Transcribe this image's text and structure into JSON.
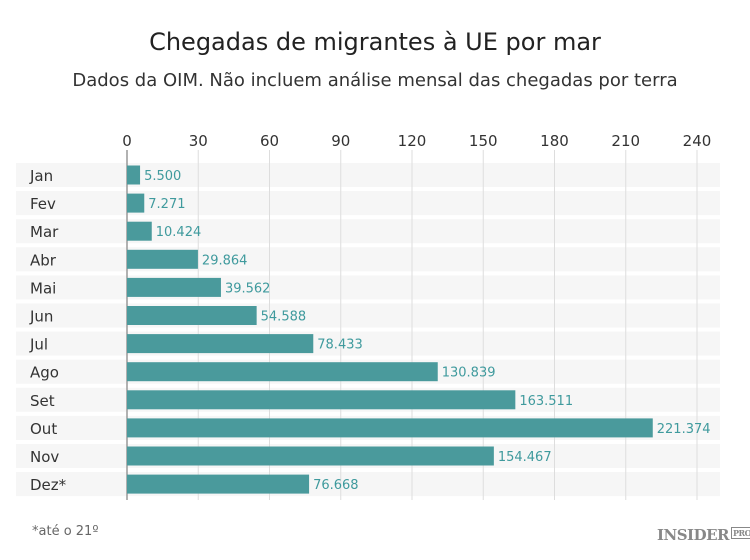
{
  "chart_data": {
    "type": "bar",
    "orientation": "horizontal",
    "title": "Chegadas de migrantes à UE por mar",
    "subtitle": "Dados da OIM. Não incluem análise mensal das chegadas por terra",
    "categories": [
      "Jan",
      "Fev",
      "Mar",
      "Abr",
      "Mai",
      "Jun",
      "Jul",
      "Ago",
      "Set",
      "Out",
      "Nov",
      "Dez*"
    ],
    "values": [
      5.5,
      7.271,
      10.424,
      29.864,
      39.562,
      54.588,
      78.433,
      130.839,
      163.511,
      221.374,
      154.467,
      76.668
    ],
    "value_labels": [
      "5.500",
      "7.271",
      "10.424",
      "29.864",
      "39.562",
      "54.588",
      "78.433",
      "130.839",
      "163.511",
      "221.374",
      "154.467",
      "76.668"
    ],
    "xlim": [
      0,
      240
    ],
    "xticks": [
      "0",
      "30",
      "60",
      "90",
      "120",
      "150",
      "180",
      "210",
      "240"
    ],
    "grid": true,
    "bar_color": "#4a9a9c",
    "label_color": "#3f9a9d",
    "note": "*até o 21º"
  },
  "logo": {
    "text": "INSIDER",
    "badge": "PRO"
  }
}
